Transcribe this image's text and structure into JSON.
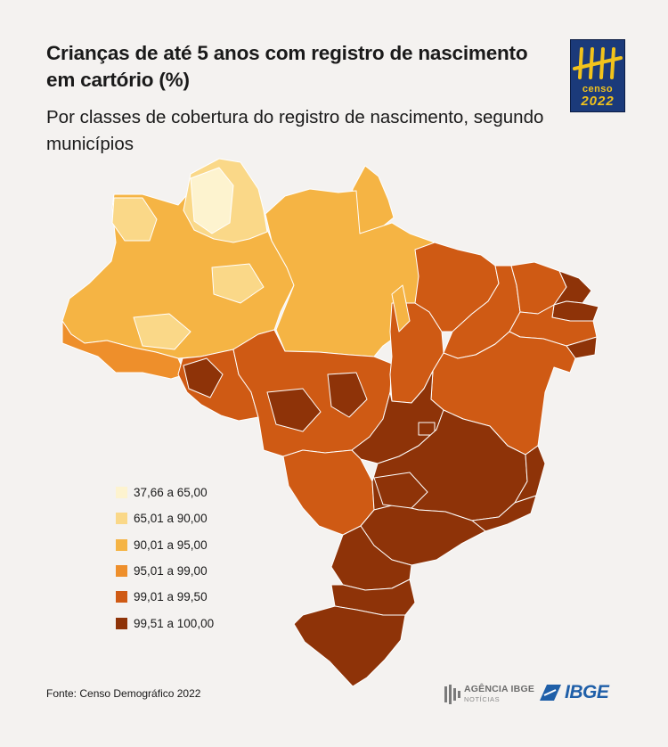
{
  "header": {
    "title": "Crianças de até 5 anos com registro de nascimento em cartório (%)",
    "subtitle": "Por classes de cobertura do registro de nascimento, segundo municípios"
  },
  "logo_censo": {
    "word": "censo",
    "year": "2022",
    "bg_color": "#1b3a7a",
    "accent_color": "#f2c31b"
  },
  "legend": {
    "items": [
      {
        "label": "37,66 a 65,00",
        "color": "#fdf3cf"
      },
      {
        "label": "65,01 a 90,00",
        "color": "#fad888"
      },
      {
        "label": "90,01 a 95,00",
        "color": "#f5b444"
      },
      {
        "label": "95,01 a 99,00",
        "color": "#ee8f2b"
      },
      {
        "label": "99,01 a 99,50",
        "color": "#cf5a14"
      },
      {
        "label": "99,51 a 100,00",
        "color": "#8e3308"
      }
    ]
  },
  "source": "Fonte:  Censo Demográfico 2022",
  "footer_logos": {
    "agencia": {
      "main": "AGÊNCIA IBGE",
      "sub": "NOTÍCIAS"
    },
    "ibge": {
      "word": "IBGE",
      "color": "#1f5fa8"
    }
  },
  "map": {
    "type": "choropleth",
    "regions": [
      {
        "name": "AM",
        "class_color": "#f5b444"
      },
      {
        "name": "RR",
        "class_color": "#fad888"
      },
      {
        "name": "AP",
        "class_color": "#f5b444"
      },
      {
        "name": "PA",
        "class_color": "#f5b444"
      },
      {
        "name": "AC",
        "class_color": "#ee8f2b"
      },
      {
        "name": "RO",
        "class_color": "#cf5a14"
      },
      {
        "name": "MT",
        "class_color": "#cf5a14"
      },
      {
        "name": "TO",
        "class_color": "#cf5a14"
      },
      {
        "name": "MA",
        "class_color": "#cf5a14"
      },
      {
        "name": "PI",
        "class_color": "#cf5a14"
      },
      {
        "name": "CE",
        "class_color": "#cf5a14"
      },
      {
        "name": "RN",
        "class_color": "#8e3308"
      },
      {
        "name": "PB",
        "class_color": "#8e3308"
      },
      {
        "name": "PE",
        "class_color": "#cf5a14"
      },
      {
        "name": "AL",
        "class_color": "#8e3308"
      },
      {
        "name": "SE",
        "class_color": "#8e3308"
      },
      {
        "name": "BA",
        "class_color": "#cf5a14"
      },
      {
        "name": "GO",
        "class_color": "#8e3308"
      },
      {
        "name": "DF",
        "class_color": "#8e3308"
      },
      {
        "name": "MS",
        "class_color": "#cf5a14"
      },
      {
        "name": "MG",
        "class_color": "#8e3308"
      },
      {
        "name": "ES",
        "class_color": "#8e3308"
      },
      {
        "name": "RJ",
        "class_color": "#8e3308"
      },
      {
        "name": "SP",
        "class_color": "#8e3308"
      },
      {
        "name": "PR",
        "class_color": "#8e3308"
      },
      {
        "name": "SC",
        "class_color": "#8e3308"
      },
      {
        "name": "RS",
        "class_color": "#8e3308"
      }
    ]
  }
}
